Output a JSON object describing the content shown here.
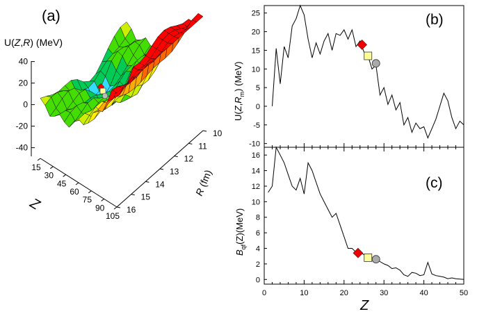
{
  "panel_a": {
    "label": "(a)",
    "ylabel_prefix": "U(",
    "ylabel_z": "Z",
    "ylabel_comma": ",",
    "ylabel_r": "R",
    "ylabel_suffix": ")  (MeV)",
    "xlabel": "Z",
    "rlabel_var": "R",
    "rlabel_unit": " (fm)"
  },
  "chart_data": [
    {
      "type": "surface",
      "panel": "a",
      "title": "",
      "u_axis": {
        "label": "U(Z,R) (MeV)",
        "ticks": [
          40,
          20,
          0,
          -20,
          -40
        ]
      },
      "z_axis": {
        "label": "Z",
        "ticks": [
          15,
          30,
          45,
          60,
          75,
          90,
          105
        ]
      },
      "r_axis": {
        "label": "R (fm)",
        "ticks": [
          10,
          11,
          12,
          13,
          14,
          15,
          16
        ]
      },
      "color_bands": [
        "#0000cc",
        "#1f4fff",
        "#00a0ff",
        "#33ddff",
        "#00cc55",
        "#44dd00",
        "#ccee00",
        "#ffee00",
        "#ffaa00",
        "#ff6600",
        "#ff0000"
      ],
      "markers": [
        {
          "shape": "diamond",
          "color": "#ee0000"
        },
        {
          "shape": "square",
          "color": "#ffff99"
        },
        {
          "shape": "circle",
          "color": "#bbbbbb"
        }
      ]
    },
    {
      "type": "line",
      "panel": "b",
      "label": "(b)",
      "ylabel": "U(Z,Rm) (MeV)",
      "ylabel_parts": {
        "pre": "U(",
        "var": "Z",
        "comma": ",",
        "r": "R",
        "sub": "m",
        "post": ") (MeV)"
      },
      "xlim": [
        0,
        50
      ],
      "ylim": [
        -11,
        27
      ],
      "yticks": [
        -10,
        -5,
        0,
        5,
        10,
        15,
        20,
        25
      ],
      "x": [
        2,
        3,
        4,
        5,
        6,
        7,
        8,
        9,
        10,
        11,
        12,
        13,
        14,
        15,
        16,
        17,
        18,
        19,
        20,
        21,
        22,
        23,
        24,
        25,
        26,
        27,
        28,
        29,
        30,
        31,
        32,
        33,
        34,
        35,
        36,
        37,
        38,
        39,
        40,
        41,
        42,
        43,
        44,
        45,
        46,
        47,
        48,
        49,
        50
      ],
      "y": [
        0,
        15.5,
        6,
        16,
        13,
        21.5,
        23.5,
        27,
        24.5,
        18,
        13,
        17,
        14,
        17.5,
        19.5,
        15,
        19.5,
        19,
        20.5,
        18,
        20.5,
        16,
        17.5,
        14.5,
        13.5,
        10,
        11,
        3,
        5,
        0.5,
        3,
        -1,
        1,
        -5,
        -3,
        -7,
        -4.5,
        -6,
        -5.5,
        -8.5,
        -6,
        -3.5,
        0,
        3.5,
        1.5,
        -3,
        -6,
        -4,
        -5
      ],
      "markers": [
        {
          "shape": "diamond",
          "color": "#ee0000",
          "x": 24.5,
          "y": 16.5
        },
        {
          "shape": "square",
          "color": "#ffff99",
          "x": 26,
          "y": 13.5
        },
        {
          "shape": "circle",
          "color": "#aaaaaa",
          "x": 28,
          "y": 11.5
        }
      ]
    },
    {
      "type": "line",
      "panel": "c",
      "label": "(c)",
      "ylabel": "Bqf(Z)(MeV)",
      "ylabel_parts": {
        "pre": "B",
        "sub": "qf",
        "post": "(Z)(MeV)"
      },
      "xlabel": "Z",
      "xlim": [
        0,
        50
      ],
      "ylim": [
        -0.6,
        17
      ],
      "xticks": [
        0,
        10,
        20,
        30,
        40,
        50
      ],
      "yticks": [
        0,
        2,
        4,
        6,
        8,
        10,
        12,
        14,
        16
      ],
      "x": [
        1,
        2,
        3,
        4,
        5,
        6,
        7,
        8,
        9,
        10,
        11,
        12,
        13,
        14,
        15,
        16,
        17,
        18,
        19,
        20,
        21,
        22,
        23,
        24,
        25,
        26,
        27,
        28,
        29,
        30,
        31,
        32,
        33,
        34,
        35,
        36,
        37,
        38,
        39,
        40,
        41,
        42,
        43,
        44,
        45,
        46,
        47,
        48,
        49,
        50
      ],
      "y": [
        11.2,
        12,
        17,
        16,
        15,
        13.5,
        12,
        11.5,
        13,
        11,
        15,
        14,
        12.5,
        11,
        10,
        9,
        8,
        8.5,
        7,
        5.5,
        4,
        4,
        3.5,
        3.5,
        3.2,
        3,
        2.8,
        2.6,
        2.3,
        2,
        1.8,
        1.4,
        1.5,
        1.2,
        0.6,
        0.4,
        0.9,
        0.8,
        0.5,
        0.6,
        2.2,
        0.7,
        0.5,
        0.4,
        0.3,
        0.1,
        0.2,
        0.1,
        0.05,
        0
      ],
      "markers": [
        {
          "shape": "diamond",
          "color": "#ee0000",
          "x": 23.5,
          "y": 3.4
        },
        {
          "shape": "square",
          "color": "#ffff99",
          "x": 26,
          "y": 2.8
        },
        {
          "shape": "circle",
          "color": "#aaaaaa",
          "x": 28,
          "y": 2.6
        }
      ]
    }
  ]
}
